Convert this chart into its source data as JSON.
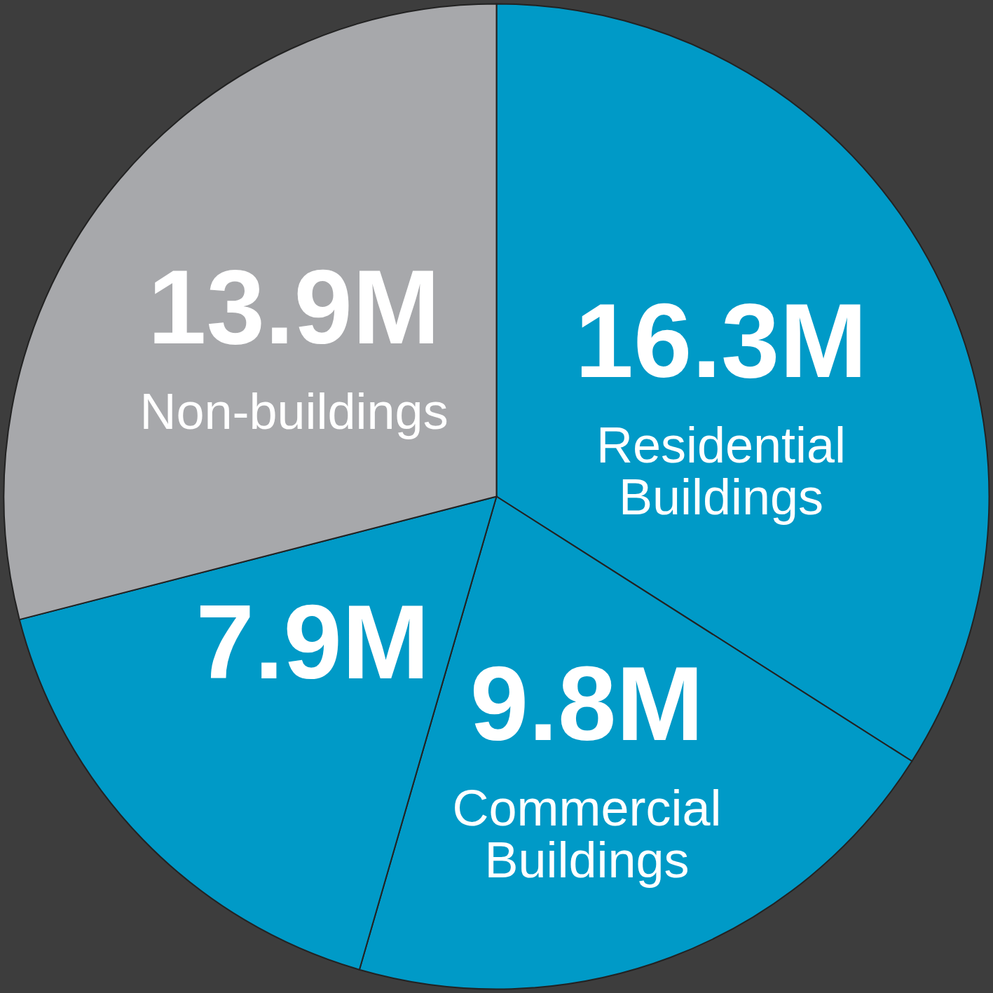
{
  "chart_data": {
    "type": "pie",
    "categories": [
      "Residential Buildings",
      "Commercial Buildings",
      null,
      "Non-buildings"
    ],
    "values": [
      16.3,
      9.8,
      7.9,
      13.9
    ],
    "colors": [
      "#009ac7",
      "#009ac7",
      "#009ac7",
      "#a7a8ab"
    ],
    "value_labels": [
      "16.3M",
      "9.8M",
      "7.9M",
      "13.9M"
    ]
  }
}
